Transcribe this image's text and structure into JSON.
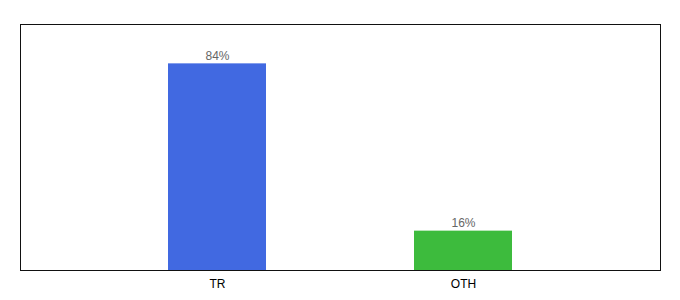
{
  "chart_data": {
    "type": "bar",
    "categories": [
      "TR",
      "OTH"
    ],
    "values": [
      84,
      16
    ],
    "value_labels": [
      "84%",
      "16%"
    ],
    "colors": [
      "#4169e1",
      "#3dbb3d"
    ],
    "ylim": [
      0,
      100
    ],
    "data_labels": true,
    "tick_labels": "x",
    "grid": false
  }
}
